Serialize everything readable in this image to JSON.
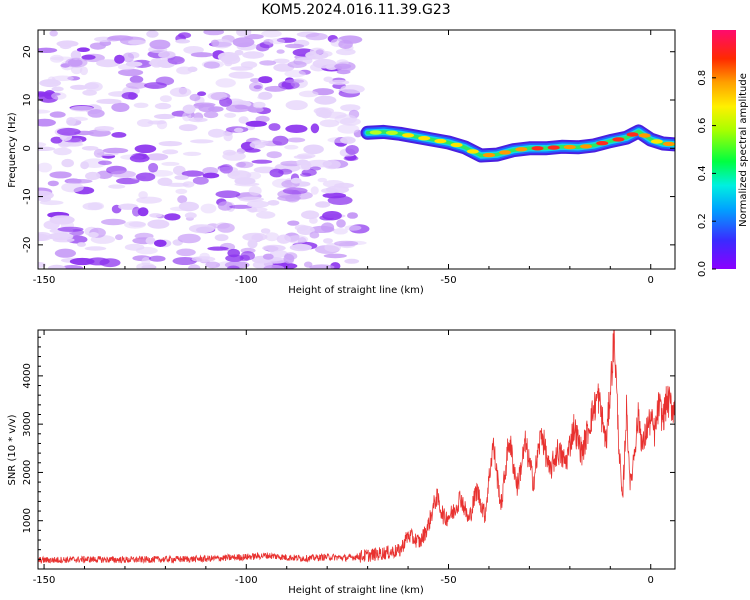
{
  "title": "KOM5.2024.016.11.39.G23",
  "colors": {
    "axis": "#000000",
    "snr_line": "#e8312f",
    "speckle_light": "#e6d4fb",
    "speckle_mid": "#c79bf6",
    "speckle_dark": "#8c33ee"
  },
  "colorbar": {
    "label": "Normalized spectral amplitude",
    "ticks": [
      "0.0",
      "0.2",
      "0.4",
      "0.6",
      "0.8"
    ],
    "tick_values": [
      0.0,
      0.2,
      0.4,
      0.6,
      0.8
    ],
    "range": [
      0,
      1
    ],
    "colormap": "rainbow (purple-blue-cyan-green-yellow-orange-red-magenta)"
  },
  "chart_data": [
    {
      "type": "heatmap",
      "title": "KOM5.2024.016.11.39.G23",
      "xlabel": "Height of straight line (km)",
      "ylabel": "Frequency (Hz)",
      "xlim": [
        -151.5,
        6
      ],
      "ylim": [
        -25,
        24.5
      ],
      "xticks": [
        -150,
        -100,
        -50,
        0
      ],
      "xtick_labels": [
        "-150",
        "-100",
        "-50",
        "0"
      ],
      "yticks": [
        20,
        10,
        0,
        -10,
        -20
      ],
      "ytick_labels": [
        "20",
        "10",
        "0",
        "-10",
        "-20"
      ],
      "noise_region_x": [
        -151.5,
        -72
      ],
      "ridge": {
        "description": "high-amplitude ridge (frequency trace)",
        "x": [
          -70,
          -66,
          -62,
          -58,
          -54,
          -50,
          -46,
          -42,
          -38,
          -34,
          -30,
          -26,
          -22,
          -18,
          -14,
          -10,
          -6,
          -3,
          0,
          3,
          6
        ],
        "y": [
          3.2,
          3.4,
          3.0,
          2.4,
          1.8,
          1.2,
          0.2,
          -1.5,
          -1.3,
          -0.4,
          0.0,
          0.0,
          0.3,
          0.2,
          0.6,
          1.5,
          2.2,
          3.5,
          1.8,
          1.0,
          0.8
        ],
        "amplitude": [
          0.45,
          0.65,
          0.7,
          0.7,
          0.75,
          0.75,
          0.75,
          0.8,
          0.85,
          0.85,
          0.95,
          0.95,
          0.85,
          0.85,
          0.9,
          0.9,
          0.95,
          0.85,
          0.75,
          0.8,
          0.8
        ]
      }
    },
    {
      "type": "line",
      "xlabel": "Height of straight line (km)",
      "ylabel": "SNR (10 * v/v)",
      "xlim": [
        -151.5,
        6
      ],
      "ylim": [
        0,
        4950
      ],
      "xticks": [
        -150,
        -100,
        -50,
        0
      ],
      "xtick_labels": [
        "-150",
        "-100",
        "-50",
        "0"
      ],
      "yticks": [
        1000,
        2000,
        3000,
        4000
      ],
      "ytick_labels": [
        "1000",
        "2000",
        "3000",
        "4000"
      ],
      "series": [
        {
          "envelope_x": [
            -151.5,
            -140,
            -130,
            -120,
            -110,
            -100,
            -95,
            -90,
            -85,
            -80,
            -75,
            -70,
            -66,
            -62,
            -60,
            -57,
            -55,
            -53,
            -51,
            -49,
            -47,
            -45,
            -43,
            -41,
            -39,
            -37,
            -35,
            -33,
            -31,
            -29,
            -27,
            -25,
            -23,
            -21,
            -19,
            -17,
            -15,
            -13,
            -11,
            -9,
            -8,
            -7,
            -6,
            -5,
            -4,
            -3,
            -2,
            -1,
            0,
            1,
            2,
            3,
            4,
            5,
            6
          ],
          "envelope_y": [
            180,
            200,
            190,
            200,
            210,
            250,
            280,
            240,
            220,
            250,
            230,
            280,
            330,
            380,
            700,
            550,
            900,
            1500,
            1050,
            1150,
            1500,
            1000,
            1650,
            1100,
            2600,
            1300,
            2700,
            1700,
            2600,
            1800,
            2850,
            2000,
            2450,
            2200,
            2950,
            2400,
            3050,
            3600,
            2600,
            4850,
            2800,
            1300,
            3300,
            1700,
            2500,
            3200,
            2500,
            2900,
            3100,
            2800,
            3400,
            3100,
            3500,
            3400,
            3300
          ]
        }
      ]
    }
  ]
}
